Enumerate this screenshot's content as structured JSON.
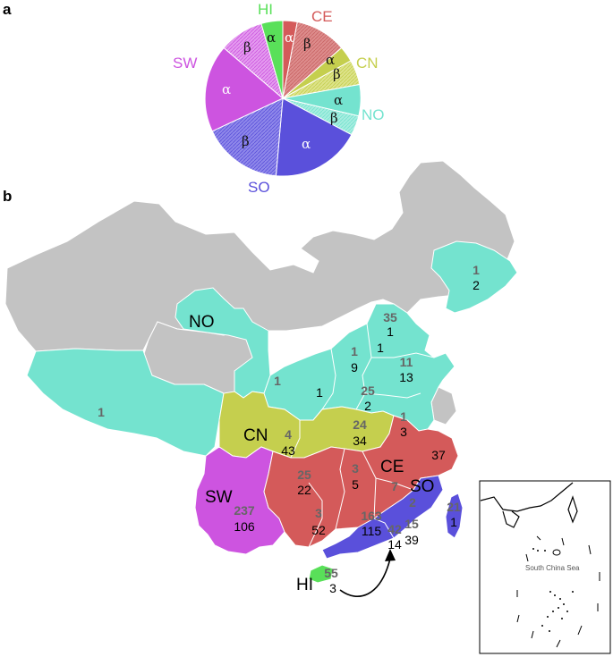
{
  "panels": {
    "a": "a",
    "b": "b"
  },
  "colors": {
    "HI": "#59e059",
    "CE": "#d45a5a",
    "CN": "#c5cf4e",
    "NO": "#74e3cf",
    "SO": "#5a50db",
    "SW": "#cd54e0",
    "other": "#c3c3c3"
  },
  "pie": {
    "region_labels": {
      "HI": "HI",
      "CE": "CE",
      "CN": "CN",
      "NO": "NO",
      "SO": "SO",
      "SW": "SW"
    },
    "slice_labels": {
      "alpha": "α",
      "beta": "β"
    }
  },
  "map": {
    "regions": {
      "NO": "NO",
      "CN": "CN",
      "SW": "SW",
      "CE": "CE",
      "SO": "SO",
      "HI": "HI"
    },
    "counts": [
      {
        "top": "1",
        "bottom": "2"
      },
      {
        "top": "35",
        "bottom": "1"
      },
      {
        "top": "",
        "bottom": "1"
      },
      {
        "top": "1",
        "bottom": "9"
      },
      {
        "top": "11",
        "bottom": "13"
      },
      {
        "top": "1",
        "bottom": ""
      },
      {
        "top": "",
        "bottom": "1"
      },
      {
        "top": "25",
        "bottom": "2"
      },
      {
        "top": "1",
        "bottom": ""
      },
      {
        "top": "24",
        "bottom": "34"
      },
      {
        "top": "1",
        "bottom": "3"
      },
      {
        "top": "4",
        "bottom": "43"
      },
      {
        "top": "25",
        "bottom": "22"
      },
      {
        "top": "3",
        "bottom": "5"
      },
      {
        "top": "7",
        "bottom": ""
      },
      {
        "top": "",
        "bottom": "37"
      },
      {
        "top": "2",
        "bottom": ""
      },
      {
        "top": "21",
        "bottom": "1"
      },
      {
        "top": "237",
        "bottom": "106"
      },
      {
        "top": "3",
        "bottom": "52"
      },
      {
        "top": "163",
        "bottom": "115"
      },
      {
        "top": "42",
        "bottom": "14"
      },
      {
        "top": "15",
        "bottom": "39"
      },
      {
        "top": "55",
        "bottom": "3"
      }
    ],
    "inset_label": "South China Sea"
  }
}
